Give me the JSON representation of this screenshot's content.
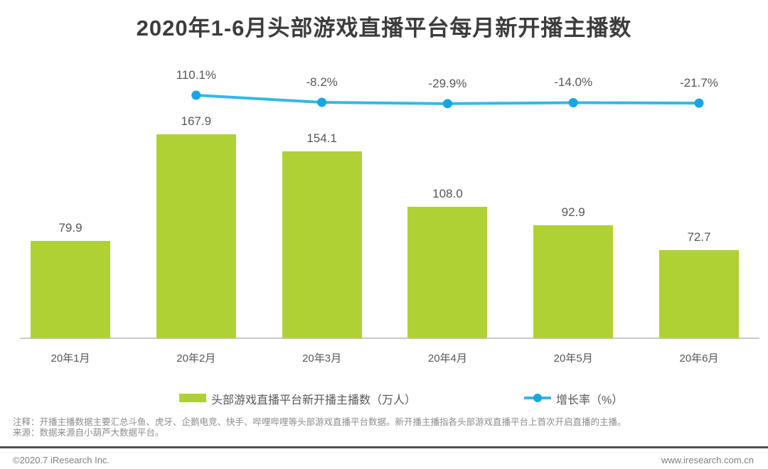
{
  "page": {
    "title": "2020年1-6月头部游戏直播平台每月新开播主播数",
    "note_line1": "注释：开播主播数据主要汇总斗鱼、虎牙、企鹅电竞、快手、哔哩哔哩等头部游戏直播平台数据。新开播主播指各头部游戏直播平台上首次开启直播的主播。",
    "note_line2": "来源：数据来源自小葫芦大数据平台。",
    "footer_left": "©2020.7 iResearch Inc.",
    "footer_right": "www.iresearch.com.cn"
  },
  "colors": {
    "bar": "#b0d134",
    "line": "#35b7e8",
    "marker": "#16a7e0",
    "title_text": "#3c3c3c",
    "label_text": "#595757",
    "axis_line": "#c9c9c9",
    "note_text": "#8c8c8c",
    "footer_rule": "#515151",
    "footer_text": "#7f7f7f"
  },
  "chart_data": {
    "type": "bar",
    "title": "2020年1-6月头部游戏直播平台每月新开播主播数",
    "categories": [
      "20年1月",
      "20年2月",
      "20年3月",
      "20年4月",
      "20年5月",
      "20年6月"
    ],
    "series": [
      {
        "name": "头部游戏直播平台新开播主播数（万人）",
        "type": "bar",
        "values": [
          79.9,
          167.9,
          154.1,
          108.0,
          92.9,
          72.7
        ],
        "value_labels": [
          "79.9",
          "167.9",
          "154.1",
          "108.0",
          "92.9",
          "72.7"
        ]
      },
      {
        "name": "增长率（%）",
        "type": "line",
        "values": [
          null,
          110.1,
          -8.2,
          -29.9,
          -14.0,
          -21.7
        ],
        "value_labels": [
          "",
          "110.1%",
          "-8.2%",
          "-29.9%",
          "-14.0%",
          "-21.7%"
        ]
      }
    ],
    "xlabel": "",
    "ylabel": "",
    "grid": false,
    "legend_position": "bottom"
  }
}
